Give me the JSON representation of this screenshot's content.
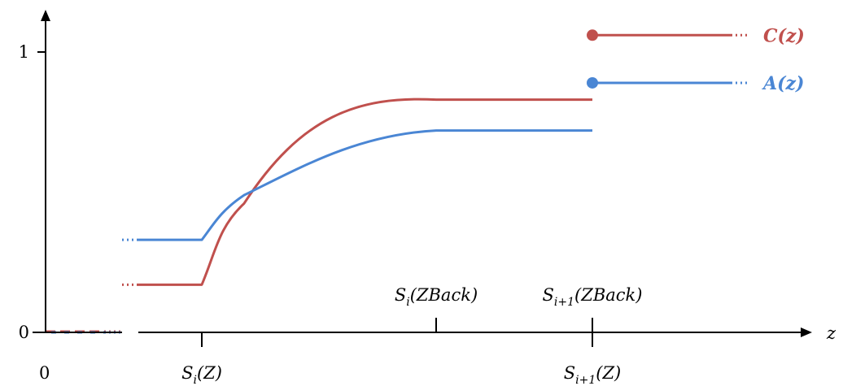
{
  "chart_data": {
    "type": "line",
    "x_axis_label": "z",
    "x_origin_label": "0",
    "y_ticks": [
      {
        "value": 0,
        "label": "0"
      },
      {
        "value": 1,
        "label": "1"
      }
    ],
    "x_ticks": [
      {
        "id": "siz",
        "position": "below",
        "base": "S",
        "sub": "i",
        "arg": "(Z)"
      },
      {
        "id": "sizback",
        "position": "above",
        "base": "S",
        "sub": "i",
        "arg": "(ZBack)"
      },
      {
        "id": "si1z",
        "position": "below",
        "base": "S",
        "sub": "i+1",
        "arg": "(Z)"
      },
      {
        "id": "si1zback",
        "position": "above",
        "base": "S",
        "sub": "i+1",
        "arg": "(ZBack)"
      }
    ],
    "series": [
      {
        "name": "C(z)",
        "color": "#c0504d",
        "pre_level": 0.17,
        "curve_level": 0.83,
        "final_level": 1.06
      },
      {
        "name": "A(z)",
        "color": "#4a86d4",
        "pre_level": 0.33,
        "curve_level": 0.72,
        "final_level": 0.89
      }
    ]
  }
}
